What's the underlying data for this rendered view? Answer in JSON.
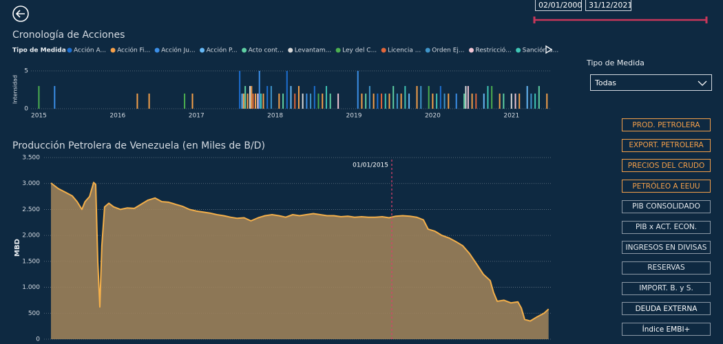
{
  "date_range": {
    "start": "02/01/2000",
    "end": "31/12/2021",
    "color": "#c8375a"
  },
  "filter": {
    "label": "Tipo de Medida",
    "value": "Todas"
  },
  "buttons": [
    {
      "label": "PROD. PETROLERA",
      "color": "#f5a04a"
    },
    {
      "label": "EXPORT. PETROLERA",
      "color": "#f5a04a"
    },
    {
      "label": "PRECIOS DEL CRUDO",
      "color": "#f5a04a"
    },
    {
      "label": "PETRÓLEO A EEUU",
      "color": "#f5a04a"
    },
    {
      "label": "PIB CONSOLIDADO",
      "color": "#e8ecf0"
    },
    {
      "label": "PIB x ACT. ECON.",
      "color": "#e8ecf0"
    },
    {
      "label": "INGRESOS EN DIVISAS",
      "color": "#e8ecf0"
    },
    {
      "label": "RESERVAS",
      "color": "#e8ecf0"
    },
    {
      "label": "IMPORT. B. y S.",
      "color": "#e8ecf0"
    },
    {
      "label": "DEUDA EXTERNA",
      "color": "#ffffff"
    },
    {
      "label": "Índice EMBI+",
      "color": "#ffffff"
    }
  ],
  "chart_data": [
    {
      "type": "bar",
      "title": "Cronología de Acciones",
      "legend_title": "Tipo de Medida",
      "y_label": "Intensidad",
      "xlim": [
        2014.9,
        2021.5
      ],
      "xticks": [
        2015,
        2016,
        2017,
        2018,
        2019,
        2020,
        2021
      ],
      "ylim": [
        0,
        5
      ],
      "yticks": [
        0,
        5
      ],
      "grid": true,
      "series": [
        {
          "name": "Acción A...",
          "color": "#1d6fd1",
          "x": [
            2017.55,
            2017.9,
            2018.15,
            2018.5,
            2019.3,
            2020.1
          ],
          "values": [
            5,
            3,
            5,
            3,
            2,
            3
          ]
        },
        {
          "name": "Acción Fi...",
          "color": "#f5a04a",
          "x": [
            2016.25,
            2016.4,
            2016.95,
            2017.6,
            2017.65,
            2017.7,
            2017.75,
            2017.85,
            2018.05,
            2018.3,
            2018.6,
            2019.1,
            2019.25,
            2019.45,
            2019.6,
            2019.8,
            2020.0,
            2020.2,
            2020.5,
            2020.85,
            2021.1,
            2021.45
          ],
          "values": [
            2,
            2,
            2,
            2,
            2,
            3,
            2,
            2,
            2,
            3,
            2,
            2,
            2,
            2,
            2,
            3,
            2,
            2,
            2,
            2,
            2,
            2
          ]
        },
        {
          "name": "Acción Ju...",
          "color": "#3b8ee6",
          "x": [
            2015.2,
            2017.8,
            2018.4,
            2019.05,
            2020.3
          ],
          "values": [
            3,
            5,
            2,
            5,
            2
          ]
        },
        {
          "name": "Acción P...",
          "color": "#66b8f5",
          "x": [
            2017.58,
            2018.2,
            2019.7,
            2020.65,
            2021.2
          ],
          "values": [
            2,
            3,
            2,
            2,
            3
          ]
        },
        {
          "name": "Acto cont...",
          "color": "#5fcfa3",
          "x": [
            2017.62,
            2018.1,
            2018.7,
            2019.15,
            2019.5,
            2020.4,
            2020.9,
            2021.35
          ],
          "values": [
            3,
            2,
            2,
            2,
            3,
            2,
            2,
            3
          ]
        },
        {
          "name": "Levantam...",
          "color": "#d9d9d9",
          "x": [
            2017.68,
            2018.35,
            2020.42,
            2021.0
          ],
          "values": [
            3,
            2,
            3,
            2
          ]
        },
        {
          "name": "Ley del C...",
          "color": "#4caf50",
          "x": [
            2015.0,
            2016.85,
            2018.55,
            2019.95,
            2020.75
          ],
          "values": [
            3,
            2,
            2,
            3,
            3
          ]
        },
        {
          "name": "Licencia ...",
          "color": "#e0663a",
          "x": [
            2017.72,
            2018.25,
            2019.35,
            2020.55
          ],
          "values": [
            2,
            2,
            2,
            2
          ]
        },
        {
          "name": "Orden Ej...",
          "color": "#3f95c9",
          "x": [
            2017.95,
            2018.45,
            2019.2,
            2019.55,
            2019.85,
            2020.15,
            2021.25
          ],
          "values": [
            3,
            2,
            3,
            2,
            3,
            2,
            2
          ]
        },
        {
          "name": "Restricció...",
          "color": "#f2c6d4",
          "x": [
            2017.78,
            2018.8,
            2020.45,
            2021.05
          ],
          "values": [
            2,
            2,
            3,
            2
          ]
        },
        {
          "name": "Sanción a...",
          "color": "#3fc5b5",
          "x": [
            2017.82,
            2018.65,
            2019.4,
            2019.65,
            2020.05,
            2020.7,
            2021.3
          ],
          "values": [
            2,
            3,
            2,
            3,
            2,
            3,
            2
          ]
        }
      ]
    },
    {
      "type": "area",
      "title": "Producción Petrolera de Venezuela (en Miles de B/D)",
      "y_label": "MBD",
      "annotation": {
        "text": "01/01/2015",
        "x": 2015
      },
      "xlim": [
        2000,
        2022
      ],
      "ylim": [
        0,
        3500
      ],
      "yticks": [
        0,
        500,
        {
          "value": 1000,
          "label": "1.000"
        },
        {
          "value": 1500,
          "label": "1.500"
        },
        {
          "value": 2000,
          "label": "2.000"
        },
        {
          "value": 2500,
          "label": "2.500"
        },
        {
          "value": 3000,
          "label": "3.000"
        },
        {
          "value": 3500,
          "label": "3.500"
        }
      ],
      "grid": true,
      "color": "#f5b04a",
      "fill": "#a3855a",
      "x": [
        2000,
        2000.33,
        2000.64,
        2000.94,
        2001.15,
        2001.36,
        2001.5,
        2001.7,
        2001.88,
        2001.97,
        2002.06,
        2002.15,
        2002.24,
        2002.36,
        2002.55,
        2002.76,
        2003.06,
        2003.36,
        2003.67,
        2003.97,
        2004.27,
        2004.58,
        2004.88,
        2005.18,
        2005.48,
        2005.79,
        2006.09,
        2006.39,
        2006.7,
        2007.0,
        2007.3,
        2007.6,
        2007.9,
        2008.2,
        2008.5,
        2008.8,
        2009.12,
        2009.42,
        2009.73,
        2010.03,
        2010.33,
        2010.64,
        2010.94,
        2011.24,
        2011.55,
        2011.85,
        2012.15,
        2012.45,
        2012.76,
        2013.06,
        2013.36,
        2013.67,
        2013.97,
        2014.27,
        2014.58,
        2014.88,
        2015.18,
        2015.48,
        2015.79,
        2016.09,
        2016.39,
        2016.6,
        2016.9,
        2017.2,
        2017.52,
        2017.82,
        2018.12,
        2018.42,
        2018.73,
        2019.03,
        2019.33,
        2019.48,
        2019.64,
        2019.94,
        2020.24,
        2020.55,
        2020.7,
        2020.85,
        2021.09,
        2021.39,
        2021.7,
        2021.9
      ],
      "values": [
        3010,
        2900,
        2830,
        2760,
        2650,
        2500,
        2650,
        2750,
        3020,
        2980,
        1500,
        620,
        1800,
        2550,
        2620,
        2550,
        2500,
        2530,
        2520,
        2600,
        2680,
        2720,
        2650,
        2640,
        2600,
        2560,
        2500,
        2470,
        2450,
        2430,
        2400,
        2380,
        2350,
        2330,
        2340,
        2280,
        2340,
        2380,
        2400,
        2380,
        2350,
        2400,
        2380,
        2400,
        2420,
        2400,
        2380,
        2380,
        2360,
        2370,
        2350,
        2360,
        2350,
        2350,
        2360,
        2340,
        2370,
        2380,
        2370,
        2350,
        2300,
        2120,
        2080,
        2000,
        1950,
        1880,
        1800,
        1650,
        1450,
        1250,
        1130,
        900,
        730,
        750,
        700,
        720,
        600,
        380,
        350,
        430,
        500,
        580
      ]
    }
  ]
}
